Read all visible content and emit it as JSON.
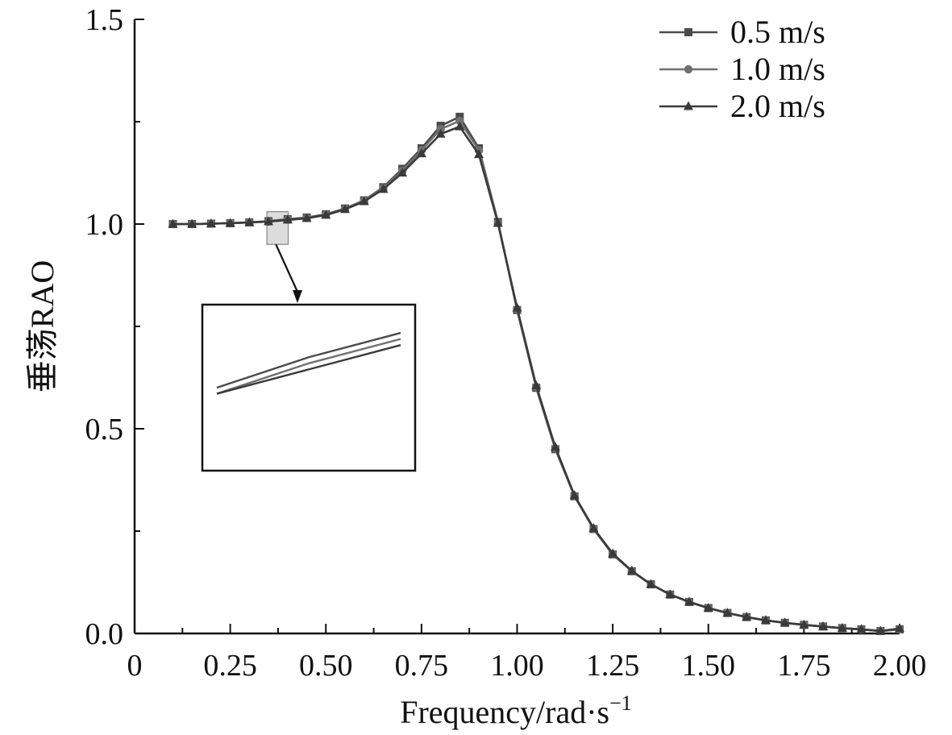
{
  "chart_data": {
    "type": "line",
    "title": "",
    "xlabel": "Frequency/rad·s",
    "xlabel_superscript": "−1",
    "ylabel": "垂荡RAO",
    "xlim": [
      0,
      2.0
    ],
    "ylim": [
      0,
      1.5
    ],
    "x_ticks": [
      0,
      0.25,
      0.5,
      0.75,
      1.0,
      1.25,
      1.5,
      1.75,
      2.0
    ],
    "x_tick_labels": [
      "0",
      "0.25",
      "0.50",
      "0.75",
      "1.00",
      "1.25",
      "1.50",
      "1.75",
      "2.00"
    ],
    "y_ticks": [
      0.0,
      0.5,
      1.0,
      1.5
    ],
    "y_tick_labels": [
      "0.0",
      "0.5",
      "1.0",
      "1.5"
    ],
    "grid": false,
    "legend_position": "top-right",
    "x": [
      0.1,
      0.15,
      0.2,
      0.25,
      0.3,
      0.35,
      0.4,
      0.45,
      0.5,
      0.55,
      0.6,
      0.65,
      0.7,
      0.75,
      0.8,
      0.85,
      0.9,
      0.95,
      1.0,
      1.05,
      1.1,
      1.15,
      1.2,
      1.25,
      1.3,
      1.35,
      1.4,
      1.45,
      1.5,
      1.55,
      1.6,
      1.65,
      1.7,
      1.75,
      1.8,
      1.85,
      1.9,
      1.95,
      2.0
    ],
    "series": [
      {
        "name": "0.5 m/s",
        "marker": "square",
        "color": "#4a4a4a",
        "values": [
          1.0,
          1.0,
          1.001,
          1.002,
          1.004,
          1.007,
          1.012,
          1.016,
          1.024,
          1.038,
          1.058,
          1.09,
          1.135,
          1.185,
          1.24,
          1.262,
          1.185,
          1.005,
          0.79,
          0.6,
          0.45,
          0.335,
          0.255,
          0.193,
          0.152,
          0.12,
          0.095,
          0.077,
          0.062,
          0.05,
          0.04,
          0.032,
          0.026,
          0.021,
          0.017,
          0.013,
          0.01,
          0.006,
          0.01
        ]
      },
      {
        "name": "1.0 m/s",
        "marker": "circle",
        "color": "#707070",
        "values": [
          1.0,
          1.0,
          1.001,
          1.002,
          1.004,
          1.006,
          1.011,
          1.015,
          1.023,
          1.037,
          1.057,
          1.088,
          1.13,
          1.18,
          1.232,
          1.252,
          1.18,
          1.003,
          0.792,
          0.602,
          0.452,
          0.336,
          0.256,
          0.194,
          0.152,
          0.12,
          0.095,
          0.077,
          0.062,
          0.05,
          0.04,
          0.032,
          0.026,
          0.021,
          0.017,
          0.013,
          0.01,
          0.006,
          0.01
        ]
      },
      {
        "name": "2.0 m/s",
        "marker": "triangle",
        "color": "#3a3a3a",
        "values": [
          1.0,
          1.0,
          1.001,
          1.002,
          1.004,
          1.006,
          1.01,
          1.014,
          1.022,
          1.036,
          1.055,
          1.085,
          1.125,
          1.172,
          1.22,
          1.238,
          1.17,
          1.002,
          0.795,
          0.605,
          0.455,
          0.337,
          0.257,
          0.195,
          0.153,
          0.12,
          0.095,
          0.077,
          0.062,
          0.05,
          0.04,
          0.032,
          0.026,
          0.021,
          0.017,
          0.013,
          0.01,
          0.006,
          0.012
        ]
      }
    ],
    "inset": {
      "description_region_x": [
        0.35,
        0.45
      ],
      "description_region_y": [
        0.97,
        1.05
      ]
    }
  }
}
